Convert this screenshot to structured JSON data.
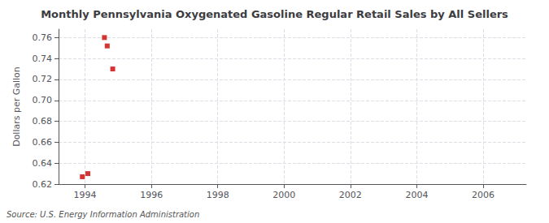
{
  "chart_data": {
    "type": "scatter",
    "title": "Monthly Pennsylvania Oxygenated Gasoline Regular Retail Sales by All Sellers",
    "ylabel": "Dollars per Gallon",
    "source": "Source: U.S. Energy Information Administration",
    "x": [
      1993.917,
      1994.083,
      1994.583,
      1994.667,
      1994.833
    ],
    "values": [
      0.627,
      0.63,
      0.76,
      0.752,
      0.73
    ],
    "color": "#cc0000",
    "marker": "square",
    "xlim": [
      1993.2,
      2007.3
    ],
    "ylim": [
      0.62,
      0.768
    ],
    "xticks": [
      1994,
      1996,
      1998,
      2000,
      2002,
      2004,
      2006
    ],
    "yticks": [
      0.62,
      0.64,
      0.66,
      0.68,
      {
        "value": 0.7,
        "label": "0.70"
      },
      0.72,
      0.74,
      0.76
    ],
    "grid": true
  }
}
